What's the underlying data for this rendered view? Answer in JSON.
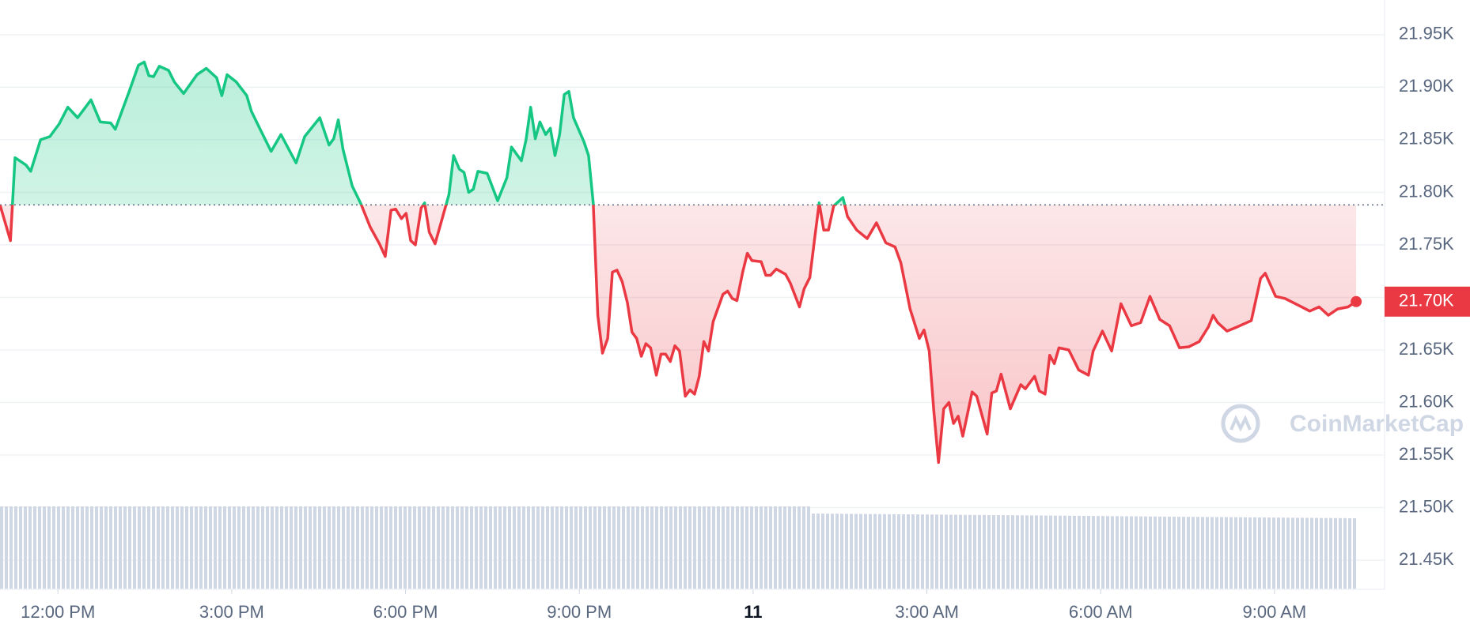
{
  "chart_data": {
    "type": "line",
    "x": [
      11.0,
      11.18,
      11.26,
      11.45,
      11.53,
      11.7,
      11.86,
      12.02,
      12.17,
      12.34,
      12.57,
      12.73,
      12.91,
      12.99,
      13.23,
      13.39,
      13.49,
      13.57,
      13.65,
      13.75,
      13.91,
      14.01,
      14.17,
      14.4,
      14.56,
      14.74,
      14.83,
      14.92,
      15.08,
      15.26,
      15.34,
      15.5,
      15.68,
      15.85,
      16.11,
      16.26,
      16.52,
      16.68,
      16.76,
      16.84,
      16.92,
      17.08,
      17.23,
      17.39,
      17.55,
      17.65,
      17.75,
      17.83,
      17.93,
      18.01,
      18.09,
      18.17,
      18.27,
      18.33,
      18.41,
      18.51,
      18.75,
      18.83,
      18.93,
      19.01,
      19.09,
      19.17,
      19.25,
      19.41,
      19.59,
      19.75,
      19.83,
      20.0,
      20.08,
      20.16,
      20.24,
      20.32,
      20.42,
      20.5,
      20.58,
      20.66,
      20.74,
      20.82,
      20.9,
      21.08,
      21.16,
      21.24,
      21.32,
      21.4,
      21.49,
      21.57,
      21.65,
      21.74,
      21.83,
      21.91,
      21.99,
      22.07,
      22.15,
      22.23,
      22.33,
      22.41,
      22.49,
      22.57,
      22.65,
      22.73,
      22.83,
      22.91,
      22.99,
      23.07,
      23.15,
      23.23,
      23.31,
      23.48,
      23.56,
      23.64,
      23.72,
      23.82,
      23.9,
      23.98,
      24.14,
      24.22,
      24.3,
      24.4,
      24.56,
      24.64,
      24.8,
      24.88,
      24.98,
      25.06,
      25.14,
      25.22,
      25.3,
      25.39,
      25.55,
      25.63,
      25.79,
      25.97,
      26.13,
      26.29,
      26.45,
      26.55,
      26.71,
      26.87,
      26.95,
      27.04,
      27.12,
      27.2,
      27.29,
      27.38,
      27.46,
      27.54,
      27.62,
      27.78,
      27.86,
      28.04,
      28.12,
      28.2,
      28.28,
      28.44,
      28.62,
      28.7,
      28.86,
      28.94,
      29.04,
      29.12,
      29.2,
      29.28,
      29.45,
      29.62,
      29.79,
      29.87,
      30.03,
      30.19,
      30.35,
      30.53,
      30.69,
      30.85,
      31.02,
      31.19,
      31.36,
      31.52,
      31.7,
      31.86,
      31.94,
      32.02,
      32.18,
      32.36,
      32.6,
      32.76,
      32.84,
      33.02,
      33.18,
      33.43,
      33.61,
      33.77,
      33.93,
      34.09,
      34.27,
      34.41
    ],
    "values": [
      21788,
      21754,
      21833,
      21826,
      21820,
      21850,
      21853,
      21865,
      21881,
      21871,
      21888,
      21867,
      21866,
      21860,
      21896,
      21921,
      21924,
      21911,
      21910,
      21920,
      21916,
      21905,
      21894,
      21912,
      21918,
      21909,
      21892,
      21912,
      21905,
      21892,
      21877,
      21859,
      21839,
      21855,
      21828,
      21853,
      21871,
      21845,
      21851,
      21869,
      21841,
      21806,
      21789,
      21767,
      21751,
      21739,
      21783,
      21784,
      21775,
      21780,
      21754,
      21750,
      21785,
      21790,
      21762,
      21751,
      21798,
      21835,
      21822,
      21819,
      21800,
      21803,
      21820,
      21818,
      21792,
      21814,
      21843,
      21830,
      21850,
      21881,
      21851,
      21867,
      21855,
      21861,
      21835,
      21855,
      21893,
      21896,
      21871,
      21848,
      21835,
      21790,
      21683,
      21647,
      21661,
      21724,
      21726,
      21715,
      21695,
      21667,
      21661,
      21644,
      21656,
      21652,
      21626,
      21646,
      21646,
      21639,
      21654,
      21649,
      21606,
      21612,
      21608,
      21625,
      21658,
      21649,
      21677,
      21703,
      21706,
      21699,
      21697,
      21724,
      21742,
      21735,
      21734,
      21721,
      21721,
      21727,
      21722,
      21714,
      21691,
      21708,
      21719,
      21755,
      21790,
      21764,
      21764,
      21787,
      21795,
      21777,
      21764,
      21756,
      21771,
      21752,
      21748,
      21733,
      21689,
      21661,
      21669,
      21649,
      21592,
      21543,
      21594,
      21600,
      21580,
      21587,
      21568,
      21610,
      21606,
      21570,
      21609,
      21611,
      21627,
      21594,
      21617,
      21613,
      21625,
      21611,
      21608,
      21645,
      21637,
      21652,
      21650,
      21631,
      21626,
      21649,
      21668,
      21649,
      21694,
      21673,
      21676,
      21701,
      21679,
      21673,
      21652,
      21653,
      21658,
      21672,
      21683,
      21676,
      21668,
      21672,
      21678,
      21718,
      21723,
      21701,
      21699,
      21692,
      21687,
      21691,
      21683,
      21689,
      21691,
      21696
    ],
    "baseline": 21788,
    "current_price": {
      "value": 21696,
      "label": "21.70K"
    },
    "colors": {
      "up": "#16c784",
      "down": "#ea3943"
    },
    "xlim": [
      11,
      34.9
    ],
    "xticks": [
      {
        "value": 12,
        "label": "12:00 PM"
      },
      {
        "value": 15,
        "label": "3:00 PM"
      },
      {
        "value": 18,
        "label": "6:00 PM"
      },
      {
        "value": 21,
        "label": "9:00 PM"
      },
      {
        "value": 24,
        "label": "11"
      },
      {
        "value": 27,
        "label": "3:00 AM"
      },
      {
        "value": 30,
        "label": "6:00 AM"
      },
      {
        "value": 33,
        "label": "9:00 AM"
      }
    ],
    "ylim": [
      21426,
      21983
    ],
    "yticks": [
      {
        "value": 21450,
        "label": "21.45K"
      },
      {
        "value": 21500,
        "label": "21.50K"
      },
      {
        "value": 21550,
        "label": "21.55K"
      },
      {
        "value": 21600,
        "label": "21.60K"
      },
      {
        "value": 21650,
        "label": "21.65K"
      },
      {
        "value": 21700,
        "label": "21.70K"
      },
      {
        "value": 21750,
        "label": "21.75K"
      },
      {
        "value": 21800,
        "label": "21.80K"
      },
      {
        "value": 21850,
        "label": "21.85K"
      },
      {
        "value": 21900,
        "label": "21.90K"
      },
      {
        "value": 21950,
        "label": "21.95K"
      }
    ],
    "grid": true,
    "watermark": "CoinMarketCap"
  }
}
